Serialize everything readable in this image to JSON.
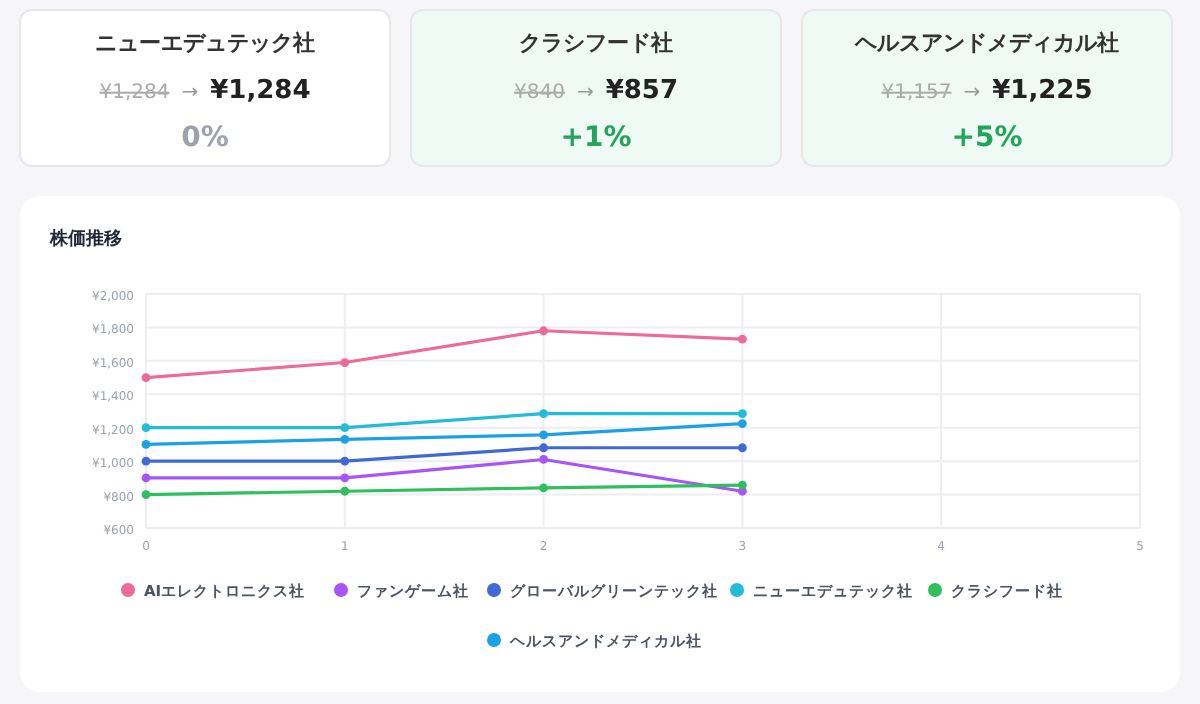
{
  "chart_data": [
    {
      "type": "other",
      "title": "ニューエデュテック社",
      "annotations": [
        "¥1,284",
        "→",
        "¥1,284",
        "0%"
      ],
      "colors": [
        "#ffffff",
        "#9ca3af"
      ]
    },
    {
      "type": "other",
      "title": "クラシフード社",
      "annotations": [
        "¥840",
        "→",
        "¥857",
        "+1%"
      ],
      "colors": [
        "#eefaf3",
        "#22a55a"
      ]
    },
    {
      "type": "other",
      "title": "ヘルスアンドメディカル社",
      "annotations": [
        "¥1,157",
        "→",
        "¥1,225",
        "+5%"
      ],
      "colors": [
        "#eefaf3",
        "#22a55a"
      ]
    },
    {
      "type": "line",
      "title": "株価推移",
      "x": [
        0,
        1,
        2,
        3
      ],
      "xlim": [
        0,
        5
      ],
      "xticks": [
        0,
        1,
        2,
        3,
        4,
        5
      ],
      "ylim": [
        600,
        2000
      ],
      "yticks": [
        {
          "value": 600,
          "label": "¥600"
        },
        {
          "value": 800,
          "label": "¥800"
        },
        {
          "value": 1000,
          "label": "¥1,000"
        },
        {
          "value": 1200,
          "label": "¥1,200"
        },
        {
          "value": 1400,
          "label": "¥1,400"
        },
        {
          "value": 1600,
          "label": "¥1,600"
        },
        {
          "value": 1800,
          "label": "¥1,800"
        },
        {
          "value": 2000,
          "label": "¥2,000"
        }
      ],
      "grid": true,
      "legend": "bottom",
      "marker": "circle",
      "line_style": "solid",
      "series": [
        {
          "name": "AIエレクトロニクス社",
          "color": "#ec6b9a",
          "values": [
            1500,
            1590,
            1780,
            1730
          ]
        },
        {
          "name": "ファンゲーム社",
          "color": "#a855f7",
          "values": [
            900,
            900,
            1010,
            820
          ]
        },
        {
          "name": "グローバルグリーンテック社",
          "color": "#4169d6",
          "values": [
            1000,
            1000,
            1080,
            1080
          ]
        },
        {
          "name": "ニューエデュテック社",
          "color": "#22bcd8",
          "values": [
            1200,
            1200,
            1284,
            1284
          ]
        },
        {
          "name": "クラシフード社",
          "color": "#2fbf5f",
          "values": [
            800,
            820,
            840,
            857
          ]
        },
        {
          "name": "ヘルスアンドメディカル社",
          "color": "#1ca1e6",
          "values": [
            1100,
            1130,
            1157,
            1225
          ]
        }
      ]
    }
  ]
}
